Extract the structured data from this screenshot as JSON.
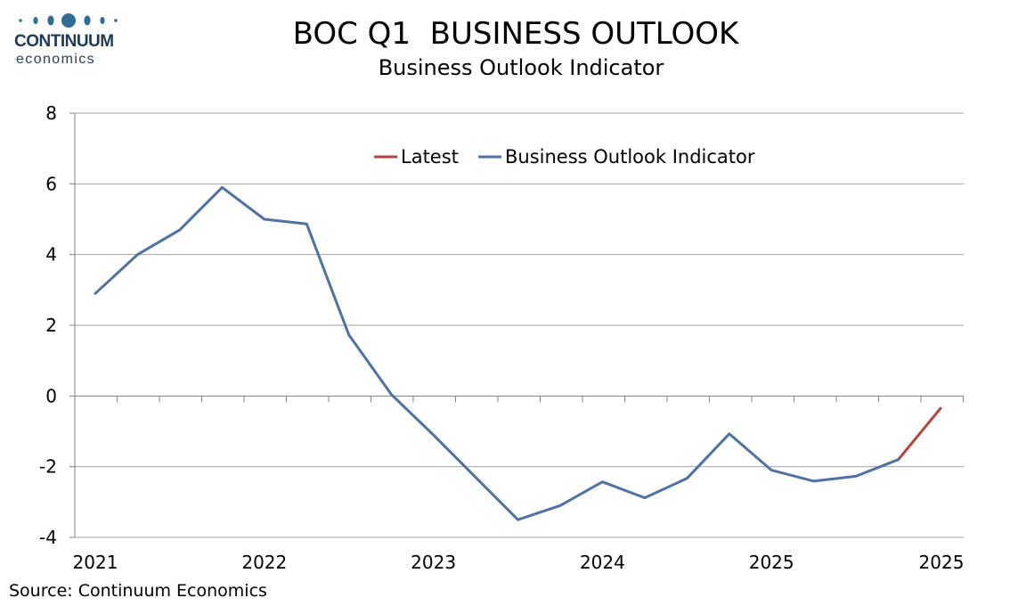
{
  "logo": {
    "name": "CONTINUUM",
    "sub": "economics"
  },
  "source": "Source: Continuum Economics",
  "colors": {
    "latest": "#b8433e",
    "indicator": "#4f72a5",
    "grid": "#a6a6a6",
    "axis": "#808080",
    "logo": "#2f6c96"
  },
  "chart_data": {
    "type": "line",
    "title": "BOC Q1  BUSINESS OUTLOOK",
    "subtitle": "Business Outlook Indicator",
    "xlabel": "",
    "ylabel": "",
    "ylim": [
      -4,
      8
    ],
    "y_ticks": [
      8,
      6,
      4,
      2,
      0,
      -2,
      -4
    ],
    "x_tick_labels": [
      "2021",
      "2022",
      "2023",
      "2024",
      "2025",
      "2025"
    ],
    "x": [
      "2021Q1",
      "2021Q2",
      "2021Q3",
      "2021Q4",
      "2022Q1",
      "2022Q2",
      "2022Q3",
      "2022Q4",
      "2023Q1",
      "2023Q2",
      "2023Q3",
      "2023Q4",
      "2024Q1",
      "2024Q2",
      "2024Q3",
      "2024Q4",
      "2025Q1",
      "2025Q2",
      "2025Q3",
      "2025Q4",
      "2026Q1"
    ],
    "grid": true,
    "legend_position": "top-center",
    "series": [
      {
        "name": "Latest",
        "color": "#b8433e",
        "values": [
          null,
          null,
          null,
          null,
          null,
          null,
          null,
          null,
          null,
          null,
          null,
          null,
          null,
          null,
          null,
          null,
          null,
          null,
          null,
          -1.8,
          -0.35
        ]
      },
      {
        "name": "Business Outlook Indicator",
        "color": "#4f72a5",
        "values": [
          2.9,
          4.0,
          4.7,
          5.9,
          5.0,
          4.87,
          1.73,
          0.05,
          -1.1,
          -2.3,
          -3.5,
          -3.1,
          -2.43,
          -2.88,
          -2.33,
          -1.07,
          -2.1,
          -2.41,
          -2.27,
          -1.8,
          null
        ]
      }
    ]
  }
}
